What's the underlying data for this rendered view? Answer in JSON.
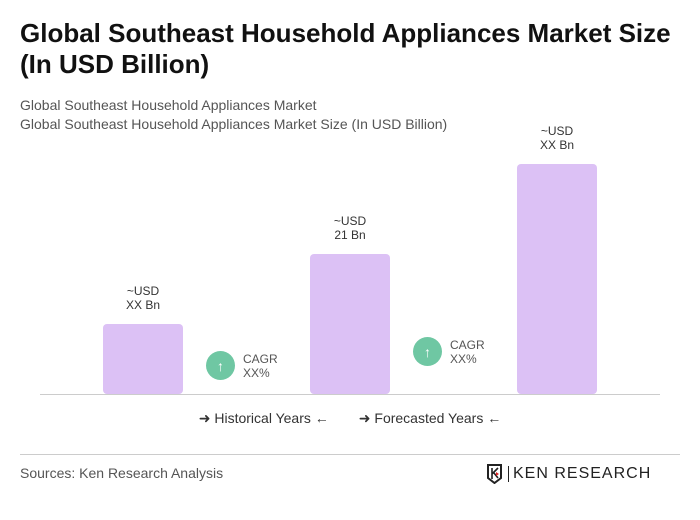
{
  "title": "Global Southeast Household Appliances Market Size (In USD Billion)",
  "subtitle1": "Global Southeast Household Appliances Market",
  "subtitle2": "Global Southeast Household Appliances Market Size (In USD Billion)",
  "chart_data": {
    "type": "bar",
    "categories": [
      "",
      "",
      ""
    ],
    "values": [
      10.5,
      21,
      34.5
    ],
    "data_labels": [
      [
        "~USD",
        "XX Bn"
      ],
      [
        "~USD",
        "21 Bn"
      ],
      [
        "~USD",
        "XX Bn"
      ]
    ],
    "bar_color": "#dcc1f5",
    "grid": false,
    "cagr": [
      {
        "label": "CAGR",
        "value": "XX%"
      },
      {
        "label": "CAGR",
        "value": "XX%"
      }
    ],
    "cagr_color": "#6fc7a3"
  },
  "legend": {
    "historical": "Historical Years",
    "forecasted": "Forecasted Years"
  },
  "sources": "Sources: Ken Research Analysis",
  "logo": "KEN RESEARCH"
}
